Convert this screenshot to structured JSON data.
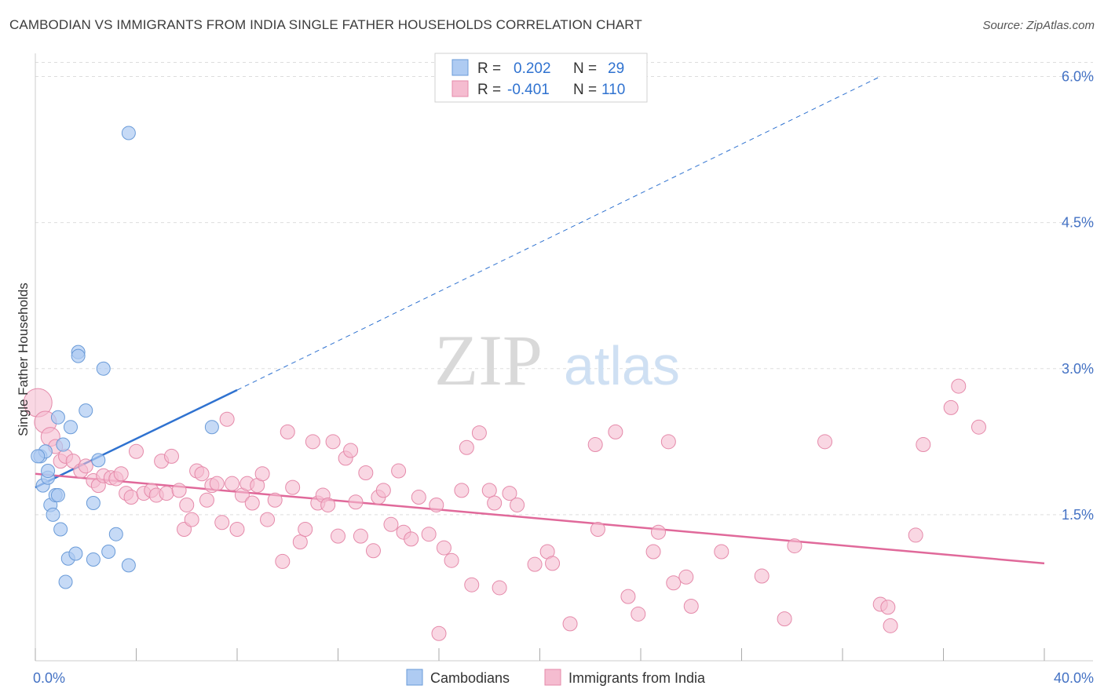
{
  "title": "CAMBODIAN VS IMMIGRANTS FROM INDIA SINGLE FATHER HOUSEHOLDS CORRELATION CHART",
  "source": "Source: ZipAtlas.com",
  "watermark": {
    "zip": "ZIP",
    "atlas": "atlas"
  },
  "colors": {
    "blue_fill": "#aecbf2",
    "blue_stroke": "#6a9bd8",
    "blue_line": "#2f72d0",
    "pink_fill": "#f5bcd0",
    "pink_stroke": "#e58aaa",
    "pink_line": "#e0699a",
    "axis_text": "#4472c4",
    "grid": "#dddddd"
  },
  "legend": {
    "rows": [
      {
        "r_label": "R =",
        "r_value": "0.202",
        "n_label": "N =",
        "n_value": "29"
      },
      {
        "r_label": "R =",
        "r_value": "-0.401",
        "n_label": "N =",
        "n_value": "110"
      }
    ]
  },
  "bottom_legend": [
    "Cambodians",
    "Immigrants from India"
  ],
  "chart_data": {
    "type": "scatter",
    "title": "CAMBODIAN VS IMMIGRANTS FROM INDIA SINGLE FATHER HOUSEHOLDS CORRELATION CHART",
    "xlabel": "",
    "ylabel": "Single Father Households",
    "xlim": [
      0,
      40
    ],
    "ylim": [
      0,
      6.3
    ],
    "x_tick_labels": [
      "0.0%",
      "40.0%"
    ],
    "y_ticks": [
      1.5,
      3.0,
      4.5,
      6.0
    ],
    "y_tick_labels": [
      "1.5%",
      "3.0%",
      "4.5%",
      "6.0%"
    ],
    "grid": true,
    "legend_position": "top-center",
    "series": [
      {
        "name": "Cambodians",
        "points": [
          [
            0.2,
            2.1
          ],
          [
            0.4,
            2.15
          ],
          [
            0.3,
            1.8
          ],
          [
            0.5,
            1.88
          ],
          [
            0.5,
            1.95
          ],
          [
            0.6,
            1.6
          ],
          [
            0.7,
            1.5
          ],
          [
            0.8,
            1.7
          ],
          [
            0.9,
            1.7
          ],
          [
            0.9,
            2.5
          ],
          [
            1.1,
            2.22
          ],
          [
            1.0,
            1.35
          ],
          [
            1.2,
            0.81
          ],
          [
            1.3,
            1.05
          ],
          [
            1.4,
            2.4
          ],
          [
            1.6,
            1.1
          ],
          [
            1.7,
            3.17
          ],
          [
            1.7,
            3.13
          ],
          [
            2.0,
            2.57
          ],
          [
            2.3,
            1.62
          ],
          [
            2.3,
            1.04
          ],
          [
            2.5,
            2.06
          ],
          [
            2.7,
            3.0
          ],
          [
            2.9,
            1.12
          ],
          [
            3.2,
            1.3
          ],
          [
            3.7,
            0.98
          ],
          [
            3.7,
            5.42
          ],
          [
            7.0,
            2.4
          ],
          [
            0.1,
            2.1
          ]
        ]
      },
      {
        "name": "Immigrants from India",
        "points": [
          [
            0.1,
            2.65
          ],
          [
            0.4,
            2.45
          ],
          [
            0.6,
            2.3
          ],
          [
            0.8,
            2.2
          ],
          [
            1.0,
            2.05
          ],
          [
            1.2,
            2.1
          ],
          [
            1.5,
            2.05
          ],
          [
            1.8,
            1.95
          ],
          [
            2.0,
            2.0
          ],
          [
            2.3,
            1.85
          ],
          [
            2.5,
            1.8
          ],
          [
            2.7,
            1.9
          ],
          [
            3.0,
            1.88
          ],
          [
            3.2,
            1.87
          ],
          [
            3.4,
            1.92
          ],
          [
            3.6,
            1.72
          ],
          [
            3.8,
            1.68
          ],
          [
            4.0,
            2.15
          ],
          [
            4.3,
            1.72
          ],
          [
            4.6,
            1.75
          ],
          [
            4.8,
            1.7
          ],
          [
            5.0,
            2.05
          ],
          [
            5.2,
            1.72
          ],
          [
            5.4,
            2.1
          ],
          [
            5.7,
            1.75
          ],
          [
            5.9,
            1.35
          ],
          [
            6.0,
            1.6
          ],
          [
            6.2,
            1.45
          ],
          [
            6.4,
            1.95
          ],
          [
            6.6,
            1.92
          ],
          [
            6.8,
            1.65
          ],
          [
            7.0,
            1.8
          ],
          [
            7.2,
            1.82
          ],
          [
            7.4,
            1.42
          ],
          [
            7.6,
            2.48
          ],
          [
            7.8,
            1.82
          ],
          [
            8.0,
            1.35
          ],
          [
            8.2,
            1.7
          ],
          [
            8.4,
            1.82
          ],
          [
            8.6,
            1.62
          ],
          [
            8.8,
            1.8
          ],
          [
            9.0,
            1.92
          ],
          [
            9.2,
            1.45
          ],
          [
            9.5,
            1.65
          ],
          [
            9.8,
            1.02
          ],
          [
            10.0,
            2.35
          ],
          [
            10.2,
            1.78
          ],
          [
            10.5,
            1.22
          ],
          [
            10.7,
            1.35
          ],
          [
            11.0,
            2.25
          ],
          [
            11.2,
            1.62
          ],
          [
            11.4,
            1.7
          ],
          [
            11.6,
            1.6
          ],
          [
            11.8,
            2.25
          ],
          [
            12.0,
            1.28
          ],
          [
            12.3,
            2.08
          ],
          [
            12.5,
            2.16
          ],
          [
            12.7,
            1.63
          ],
          [
            12.9,
            1.28
          ],
          [
            13.1,
            1.93
          ],
          [
            13.4,
            1.13
          ],
          [
            13.6,
            1.68
          ],
          [
            13.8,
            1.75
          ],
          [
            14.1,
            1.4
          ],
          [
            14.4,
            1.95
          ],
          [
            14.6,
            1.32
          ],
          [
            14.9,
            1.25
          ],
          [
            15.2,
            1.68
          ],
          [
            15.6,
            1.3
          ],
          [
            15.9,
            1.6
          ],
          [
            16.0,
            0.28
          ],
          [
            16.2,
            1.16
          ],
          [
            16.5,
            1.03
          ],
          [
            16.9,
            1.75
          ],
          [
            17.1,
            2.19
          ],
          [
            17.3,
            0.78
          ],
          [
            17.6,
            2.34
          ],
          [
            18.0,
            1.75
          ],
          [
            18.2,
            1.62
          ],
          [
            18.4,
            0.75
          ],
          [
            18.8,
            1.72
          ],
          [
            19.1,
            1.6
          ],
          [
            19.8,
            0.99
          ],
          [
            20.3,
            1.12
          ],
          [
            20.5,
            1.0
          ],
          [
            21.2,
            0.38
          ],
          [
            22.2,
            2.22
          ],
          [
            22.3,
            1.35
          ],
          [
            23.0,
            2.35
          ],
          [
            23.5,
            0.66
          ],
          [
            23.9,
            0.48
          ],
          [
            24.5,
            1.12
          ],
          [
            24.7,
            1.32
          ],
          [
            25.1,
            2.25
          ],
          [
            25.3,
            0.8
          ],
          [
            25.8,
            0.86
          ],
          [
            26.0,
            0.56
          ],
          [
            27.2,
            1.12
          ],
          [
            28.8,
            0.87
          ],
          [
            29.7,
            0.43
          ],
          [
            30.1,
            1.18
          ],
          [
            31.3,
            2.25
          ],
          [
            33.5,
            0.58
          ],
          [
            33.8,
            0.55
          ],
          [
            33.9,
            0.36
          ],
          [
            34.9,
            1.29
          ],
          [
            35.2,
            2.22
          ],
          [
            36.3,
            2.6
          ],
          [
            36.6,
            2.82
          ],
          [
            37.4,
            2.4
          ]
        ]
      }
    ],
    "trend_lines": [
      {
        "series": "Cambodians",
        "solid": [
          [
            0,
            1.78
          ],
          [
            8,
            2.78
          ]
        ],
        "dashed": [
          [
            8,
            2.78
          ],
          [
            33.5,
            6.0
          ]
        ]
      },
      {
        "series": "Immigrants from India",
        "solid": [
          [
            0,
            1.92
          ],
          [
            40,
            1.0
          ]
        ]
      }
    ]
  }
}
